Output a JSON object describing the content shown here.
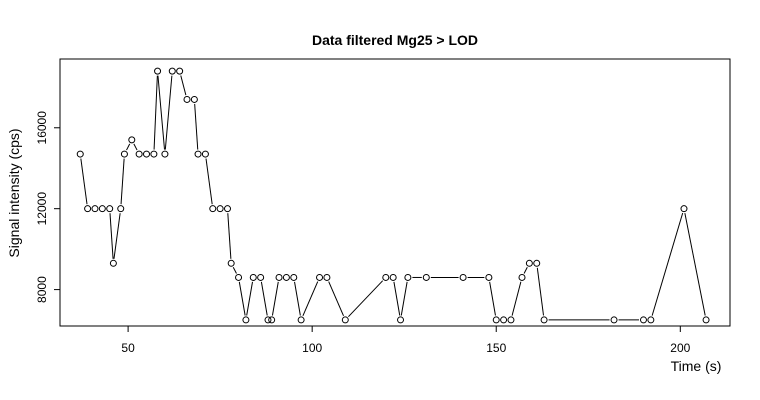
{
  "chart_data": {
    "type": "scatter",
    "title": "Data filtered Mg25 > LOD",
    "xlabel": "Time (s)",
    "ylabel": "Signal intensity (cps)",
    "xlim": [
      31.5,
      213.5
    ],
    "ylim": [
      6200,
      19400
    ],
    "xticks": [
      50,
      100,
      150,
      200
    ],
    "yticks": [
      8000,
      12000,
      16000
    ],
    "grid": false,
    "legend": "none",
    "connect_points": true,
    "x": [
      37,
      39,
      41,
      43,
      45,
      46,
      48,
      49,
      51,
      53,
      55,
      57,
      58,
      60,
      62,
      64,
      66,
      68,
      69,
      71,
      73,
      75,
      77,
      78,
      80,
      82,
      84,
      86,
      88,
      89,
      91,
      93,
      95,
      97,
      102,
      104,
      109,
      120,
      122,
      124,
      126,
      131,
      141,
      148,
      150,
      152,
      154,
      157,
      159,
      161,
      163,
      182,
      190,
      192,
      201,
      207
    ],
    "y": [
      14700,
      12000,
      12000,
      12000,
      12000,
      9300,
      12000,
      14700,
      15400,
      14700,
      14700,
      14700,
      18800,
      14700,
      18800,
      18800,
      17400,
      17400,
      14700,
      14700,
      12000,
      12000,
      12000,
      9300,
      8600,
      6500,
      8600,
      8600,
      6500,
      6500,
      8600,
      8600,
      8600,
      6500,
      8600,
      8600,
      6500,
      8600,
      8600,
      6500,
      8600,
      8600,
      8600,
      8600,
      6500,
      6500,
      6500,
      8600,
      9300,
      9300,
      6500,
      6500,
      6500,
      6500,
      12000,
      6500
    ]
  }
}
